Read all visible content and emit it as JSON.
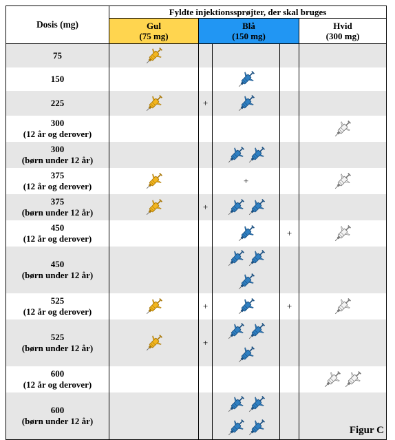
{
  "table": {
    "header_dose": "Dosis (mg)",
    "header_group": "Fyldte injektionssprøjter, der skal bruges",
    "col_gul": "Gul",
    "col_gul_sub": "(75 mg)",
    "col_blaa": "Blå",
    "col_blaa_sub": "(150 mg)",
    "col_hvid": "Hvid",
    "col_hvid_sub": "(300 mg)",
    "plus_sign": "+",
    "rows": [
      {
        "line1": "75",
        "line2": "",
        "gul": 1,
        "blaa": 0,
        "hvid": 0
      },
      {
        "line1": "150",
        "line2": "",
        "gul": 0,
        "blaa": 1,
        "hvid": 0
      },
      {
        "line1": "225",
        "line2": "",
        "gul": 1,
        "blaa": 1,
        "hvid": 0
      },
      {
        "line1": "300",
        "line2": "(12 år og derover)",
        "gul": 0,
        "blaa": 0,
        "hvid": 1
      },
      {
        "line1": "300",
        "line2": "(børn under 12 år)",
        "gul": 0,
        "blaa": 2,
        "hvid": 0
      },
      {
        "line1": "375",
        "line2": "(12 år og derover)",
        "gul": 1,
        "blaa": 0,
        "hvid": 1
      },
      {
        "line1": "375",
        "line2": "(børn under 12 år)",
        "gul": 1,
        "blaa": 2,
        "hvid": 0
      },
      {
        "line1": "450",
        "line2": "(12 år og derover)",
        "gul": 0,
        "blaa": 1,
        "hvid": 1
      },
      {
        "line1": "450",
        "line2": "(børn under 12 år)",
        "gul": 0,
        "blaa": 3,
        "hvid": 0
      },
      {
        "line1": "525",
        "line2": "(12 år og derover)",
        "gul": 1,
        "blaa": 1,
        "hvid": 1
      },
      {
        "line1": "525",
        "line2": "(børn under 12 år)",
        "gul": 1,
        "blaa": 3,
        "hvid": 0
      },
      {
        "line1": "600",
        "line2": "(12 år og derover)",
        "gul": 0,
        "blaa": 0,
        "hvid": 2
      },
      {
        "line1": "600",
        "line2": "(børn under 12 år)",
        "gul": 0,
        "blaa": 4,
        "hvid": 0
      }
    ]
  },
  "colors": {
    "gul": "#ffd54f",
    "blaa": "#2196f3",
    "hvid": "#ffffff",
    "row_grey": "#e6e6e6"
  },
  "icons": {
    "syringe": "syringe-icon"
  },
  "figure_label": "Figur C"
}
